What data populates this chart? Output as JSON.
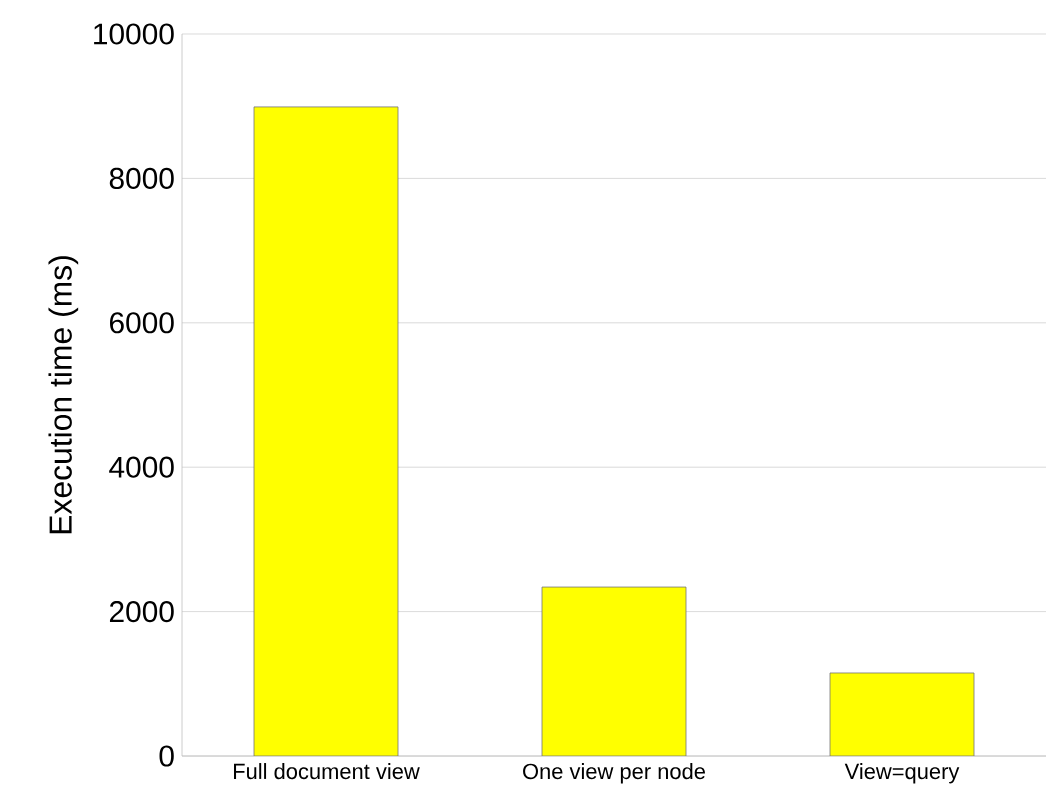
{
  "chart_data": {
    "type": "bar",
    "ylabel": "Execution time (ms)",
    "categories": [
      "Full document view",
      "One view per node",
      "View=query"
    ],
    "values": [
      8990,
      2340,
      1150
    ],
    "color": "#ffff00",
    "ylim": [
      0,
      10000
    ],
    "yticks": [
      0,
      2000,
      4000,
      6000,
      8000,
      10000
    ],
    "grid": "y"
  }
}
